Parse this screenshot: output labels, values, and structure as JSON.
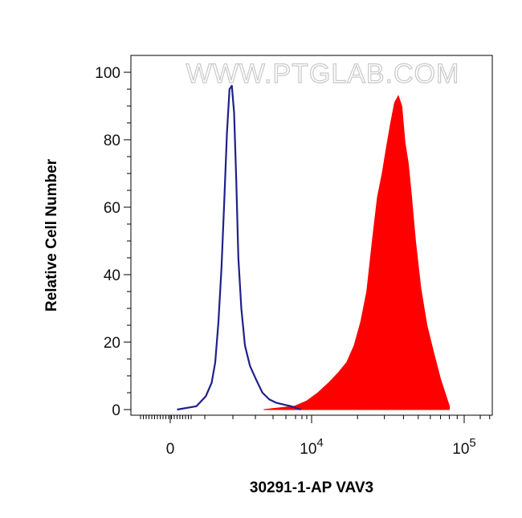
{
  "chart_data": {
    "type": "area",
    "title": "",
    "watermark": "WWW.PTGLAB.COM",
    "xlabel": "30291-1-AP VAV3",
    "ylabel": "Relative Cell Number",
    "x_scale": "biexponential",
    "ylim": [
      0,
      100
    ],
    "y_ticks": [
      0,
      20,
      40,
      60,
      80,
      100
    ],
    "x_tick_labels": [
      {
        "value": 0,
        "base": "0",
        "exp": ""
      },
      {
        "value": 10000,
        "base": "10",
        "exp": "4"
      },
      {
        "value": 100000,
        "base": "10",
        "exp": "5"
      }
    ],
    "grid": false,
    "legend": "none",
    "series": [
      {
        "style": "outline",
        "color": "#1f1f8c",
        "x": [
          200,
          500,
          700,
          850,
          950,
          1050,
          1150,
          1250,
          1350,
          1450,
          1550,
          1650,
          1750,
          1850,
          2000,
          2200,
          2500,
          2900,
          3400,
          4000,
          4700,
          5500,
          6500,
          8000
        ],
        "y": [
          0,
          1,
          4,
          8,
          14,
          26,
          42,
          62,
          82,
          95,
          96,
          88,
          68,
          45,
          30,
          19,
          13,
          9,
          5,
          3,
          2,
          1.5,
          1,
          0
        ]
      },
      {
        "style": "filled",
        "color": "#ff0000",
        "x": [
          3500,
          5000,
          7000,
          9000,
          11000,
          13000,
          15000,
          17000,
          19000,
          21000,
          23000,
          25000,
          27000,
          29000,
          31000,
          33000,
          35000,
          37000,
          39000,
          41000,
          43000,
          45000,
          48000,
          52000,
          57000,
          63000,
          70000,
          80000
        ],
        "y": [
          0,
          0.5,
          1,
          2.5,
          5,
          8,
          11,
          14,
          19,
          26,
          35,
          50,
          63,
          70,
          78,
          85,
          91,
          93,
          90,
          79,
          73,
          64,
          50,
          36,
          25,
          17,
          9,
          1
        ]
      }
    ]
  }
}
